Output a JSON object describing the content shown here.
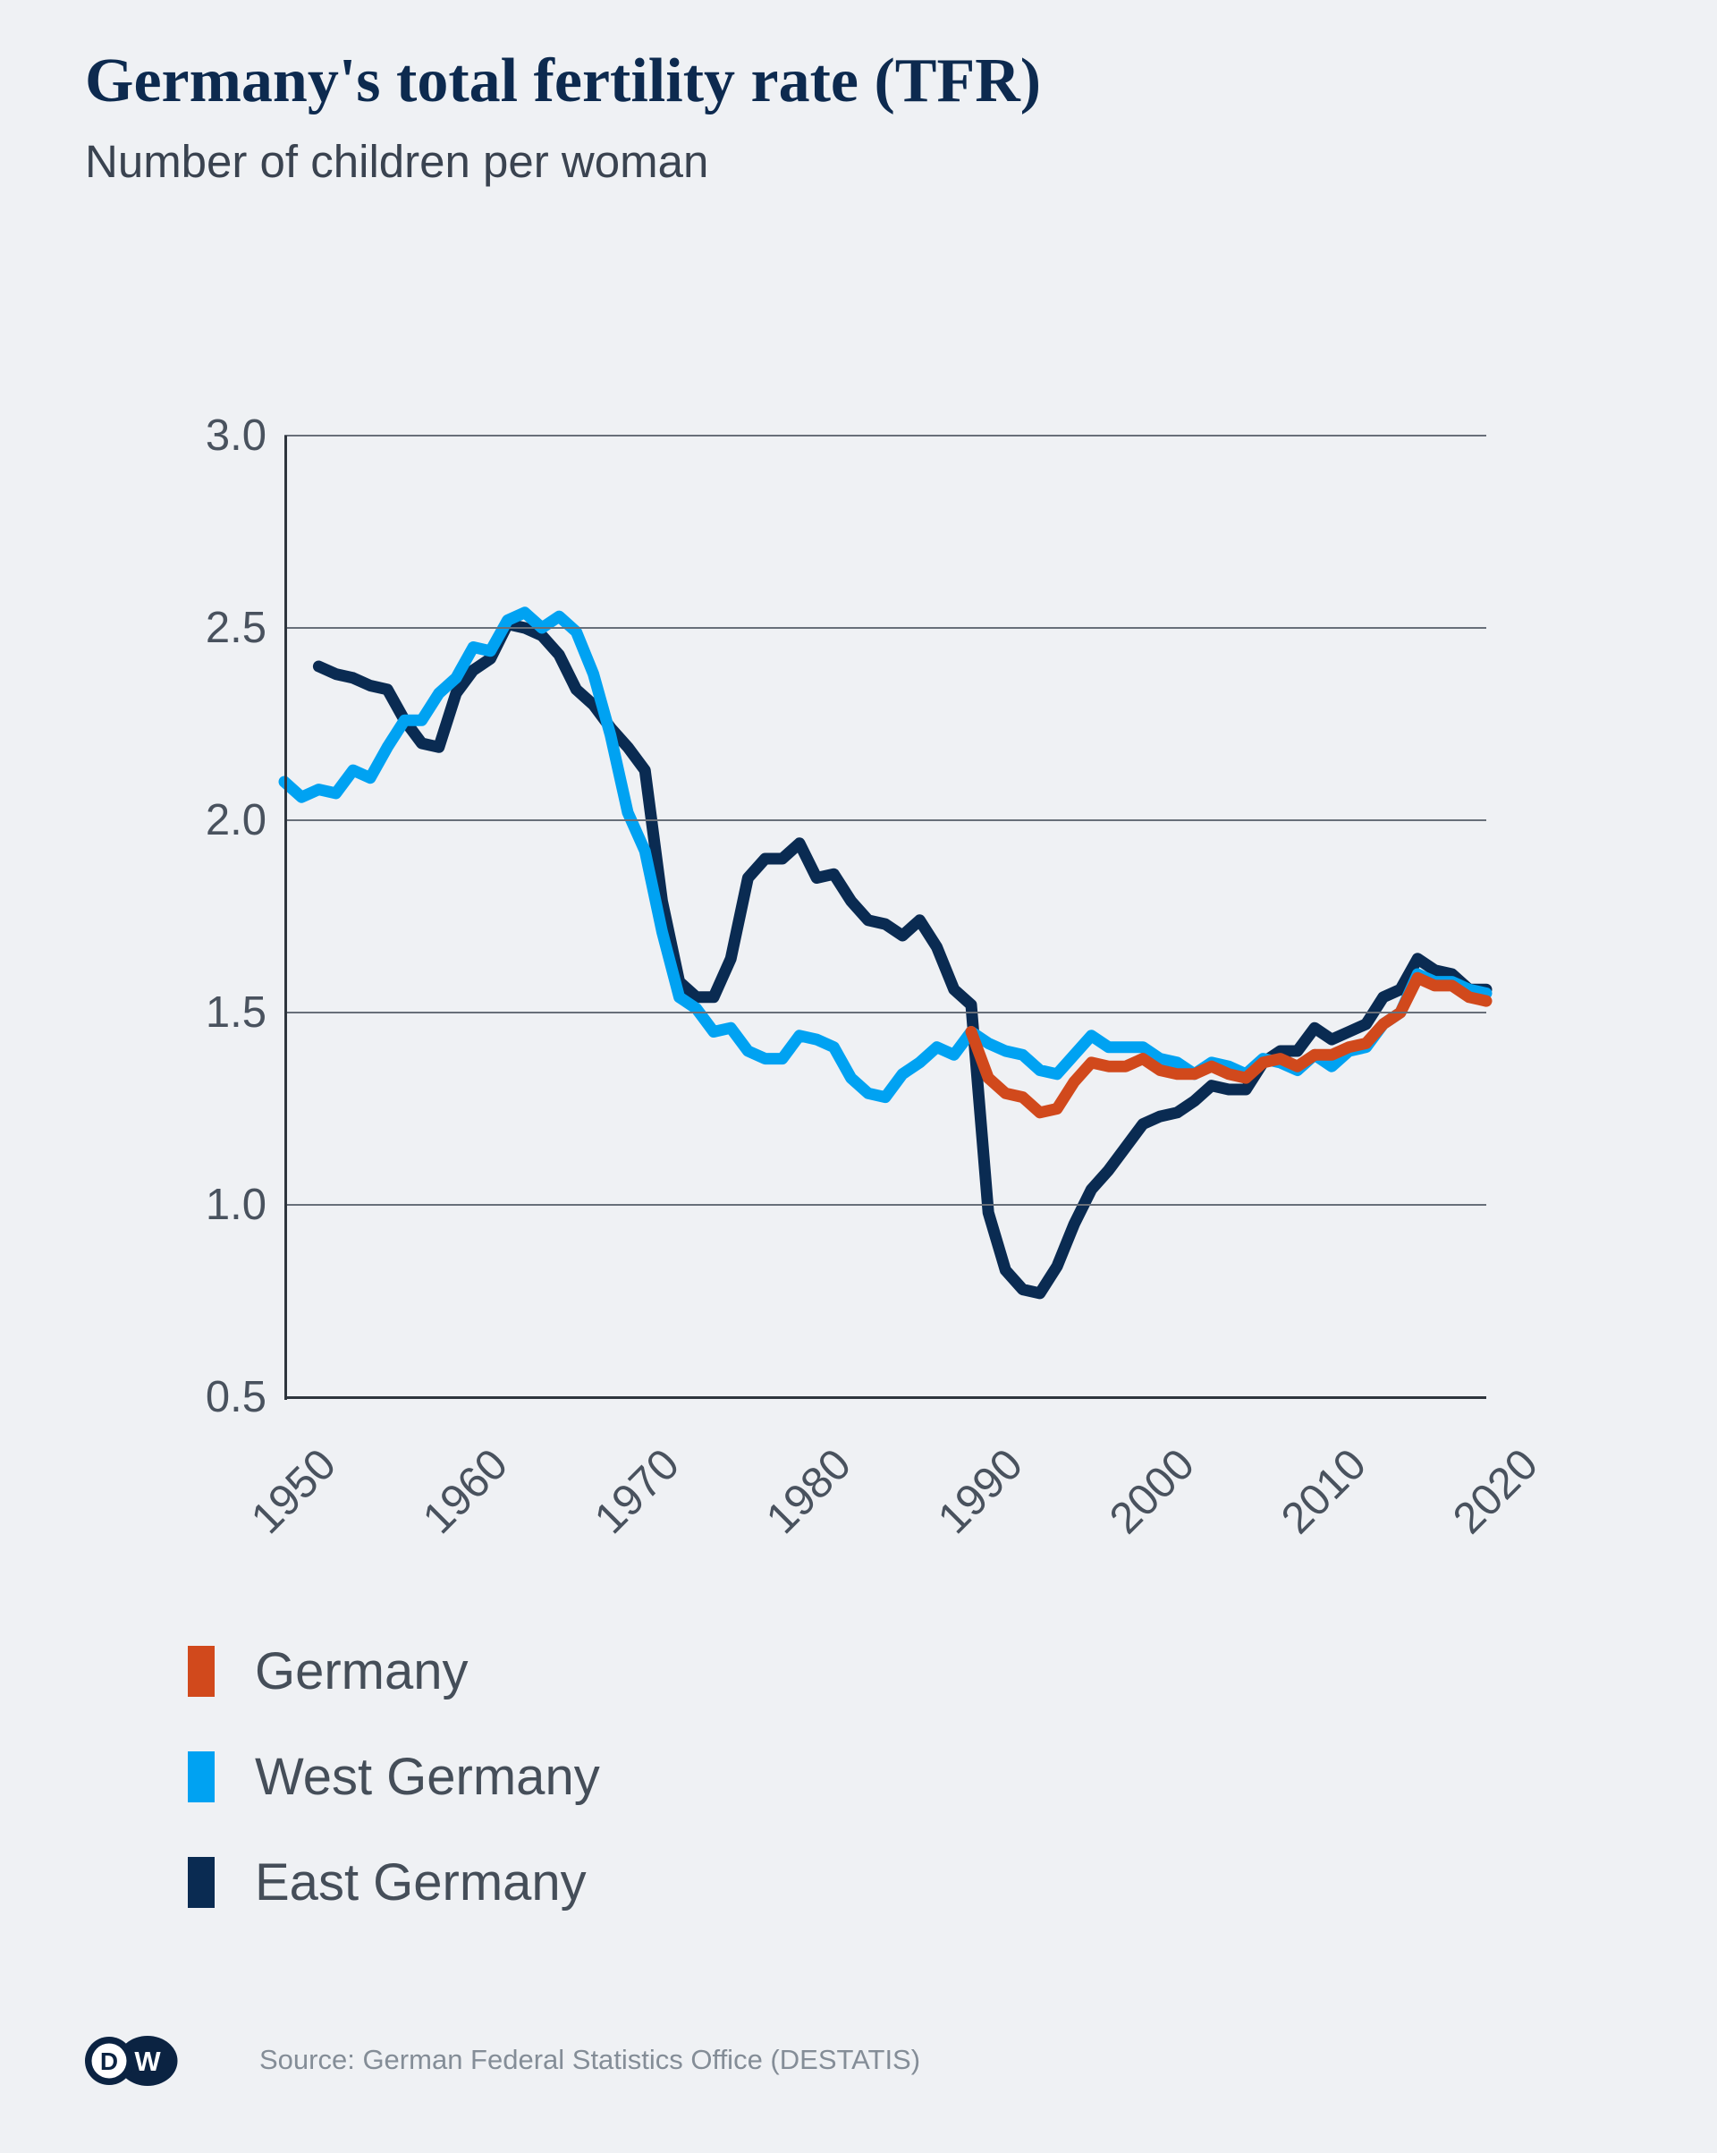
{
  "header": {
    "title": "Germany's total fertility rate (TFR)",
    "subtitle": "Number of children per woman"
  },
  "chart_data": {
    "type": "line",
    "title": "Germany's total fertility rate (TFR)",
    "subtitle": "Number of children per woman",
    "xlabel": "",
    "ylabel": "Number of children per woman",
    "x_range": [
      1950,
      2020
    ],
    "ylim": [
      0.5,
      3.0
    ],
    "yticks": [
      "3.0",
      "2.5",
      "2.0",
      "1.5",
      "1.0",
      "0.5"
    ],
    "xticks": [
      "1950",
      "1960",
      "1970",
      "1980",
      "1990",
      "2000",
      "2010",
      "2020"
    ],
    "grid": "horizontal-only",
    "legend_position": "bottom-left",
    "line_width": 13,
    "series": [
      {
        "name": "Germany",
        "color": "#d1491c",
        "start_year": 1990,
        "values": [
          1.45,
          1.33,
          1.29,
          1.28,
          1.24,
          1.25,
          1.32,
          1.37,
          1.36,
          1.36,
          1.38,
          1.35,
          1.34,
          1.34,
          1.36,
          1.34,
          1.33,
          1.37,
          1.38,
          1.36,
          1.39,
          1.39,
          1.41,
          1.42,
          1.47,
          1.5,
          1.59,
          1.57,
          1.57,
          1.54,
          1.53
        ]
      },
      {
        "name": "West Germany",
        "color": "#00a2f2",
        "start_year": 1950,
        "values": [
          2.1,
          2.06,
          2.08,
          2.07,
          2.13,
          2.11,
          2.19,
          2.26,
          2.26,
          2.33,
          2.37,
          2.45,
          2.44,
          2.52,
          2.54,
          2.5,
          2.53,
          2.49,
          2.38,
          2.22,
          2.02,
          1.92,
          1.71,
          1.54,
          1.51,
          1.45,
          1.46,
          1.4,
          1.38,
          1.38,
          1.44,
          1.43,
          1.41,
          1.33,
          1.29,
          1.28,
          1.34,
          1.37,
          1.41,
          1.39,
          1.45,
          1.42,
          1.4,
          1.39,
          1.35,
          1.34,
          1.39,
          1.44,
          1.41,
          1.41,
          1.41,
          1.38,
          1.37,
          1.34,
          1.37,
          1.36,
          1.34,
          1.38,
          1.37,
          1.35,
          1.39,
          1.36,
          1.4,
          1.41,
          1.47,
          1.5,
          1.6,
          1.58,
          1.58,
          1.56,
          1.55
        ]
      },
      {
        "name": "East Germany",
        "color": "#0a2b52",
        "start_year": 1952,
        "values": [
          2.4,
          2.38,
          2.37,
          2.35,
          2.34,
          2.26,
          2.2,
          2.19,
          2.33,
          2.39,
          2.42,
          2.51,
          2.5,
          2.48,
          2.43,
          2.34,
          2.3,
          2.24,
          2.19,
          2.13,
          1.79,
          1.58,
          1.54,
          1.54,
          1.64,
          1.85,
          1.9,
          1.9,
          1.94,
          1.85,
          1.86,
          1.79,
          1.74,
          1.73,
          1.7,
          1.74,
          1.67,
          1.56,
          1.52,
          0.98,
          0.83,
          0.78,
          0.77,
          0.84,
          0.95,
          1.04,
          1.09,
          1.15,
          1.21,
          1.23,
          1.24,
          1.27,
          1.31,
          1.3,
          1.3,
          1.37,
          1.4,
          1.4,
          1.46,
          1.43,
          1.45,
          1.47,
          1.54,
          1.56,
          1.64,
          1.61,
          1.6,
          1.56,
          1.56
        ]
      }
    ],
    "colors": {
      "background": "#eff1f4",
      "gridline": "#686f79",
      "axis": "#2e353d",
      "title": "#0d2a4f",
      "label_text": "#49525e",
      "legend_text": "#454e59",
      "germany": "#d1491c",
      "west_germany": "#00a2f2",
      "east_germany": "#0a2b52"
    }
  },
  "footer": {
    "logo_d": "D",
    "logo_w": "W",
    "source": "Source: German Federal Statistics Office (DESTATIS)"
  }
}
